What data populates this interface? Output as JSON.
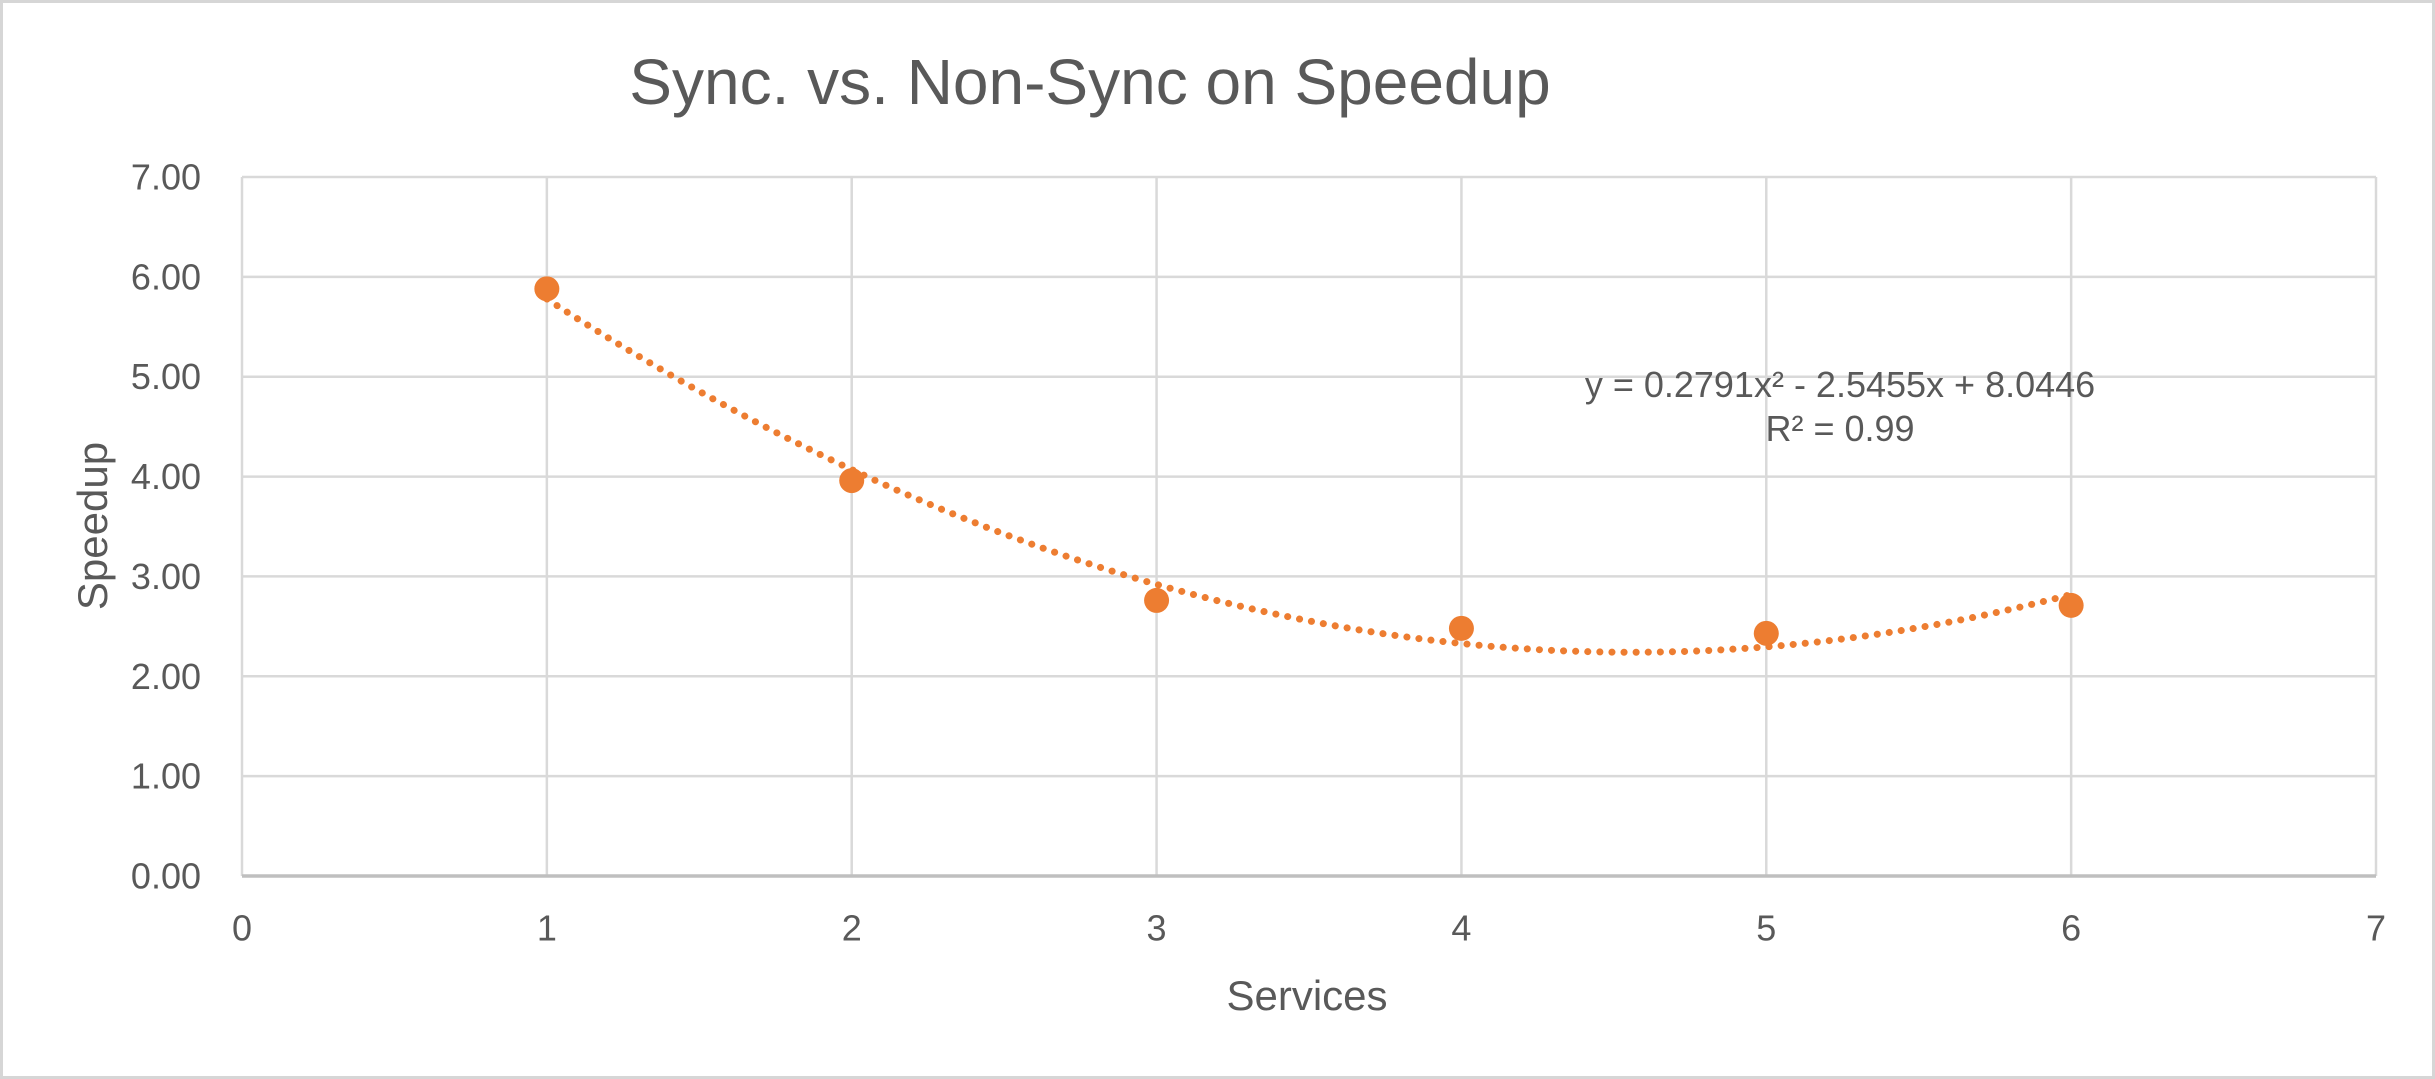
{
  "chart_data": {
    "type": "scatter",
    "title": "Sync. vs. Non-Sync on Speedup",
    "xlabel": "Services",
    "ylabel": "Speedup",
    "x": [
      1,
      2,
      3,
      4,
      5,
      6
    ],
    "y": [
      5.88,
      3.96,
      2.76,
      2.48,
      2.43,
      2.71
    ],
    "xlim": [
      0,
      7
    ],
    "ylim": [
      0,
      7
    ],
    "x_ticks": [
      "0",
      "1",
      "2",
      "3",
      "4",
      "5",
      "6",
      "7"
    ],
    "y_ticks": [
      "0.00",
      "1.00",
      "2.00",
      "3.00",
      "4.00",
      "5.00",
      "6.00",
      "7.00"
    ],
    "grid": true,
    "legend": "none",
    "trendline": {
      "type": "polynomial",
      "order": 2,
      "coefficients": {
        "a": 0.2791,
        "b": -2.5455,
        "c": 8.0446
      },
      "x_range": [
        1,
        6
      ],
      "equation_label": "y = 0.2791x² - 2.5455x + 8.0446",
      "r_squared_label": "R² = 0.99"
    },
    "colors": {
      "point": "#ED7D31",
      "trendline": "#ED7D31",
      "gridline": "#D9D9D9",
      "axis_line": "#BFBFBF",
      "text": "#595959",
      "frame_border": "#D6D6D6",
      "background": "#FFFFFF"
    }
  }
}
